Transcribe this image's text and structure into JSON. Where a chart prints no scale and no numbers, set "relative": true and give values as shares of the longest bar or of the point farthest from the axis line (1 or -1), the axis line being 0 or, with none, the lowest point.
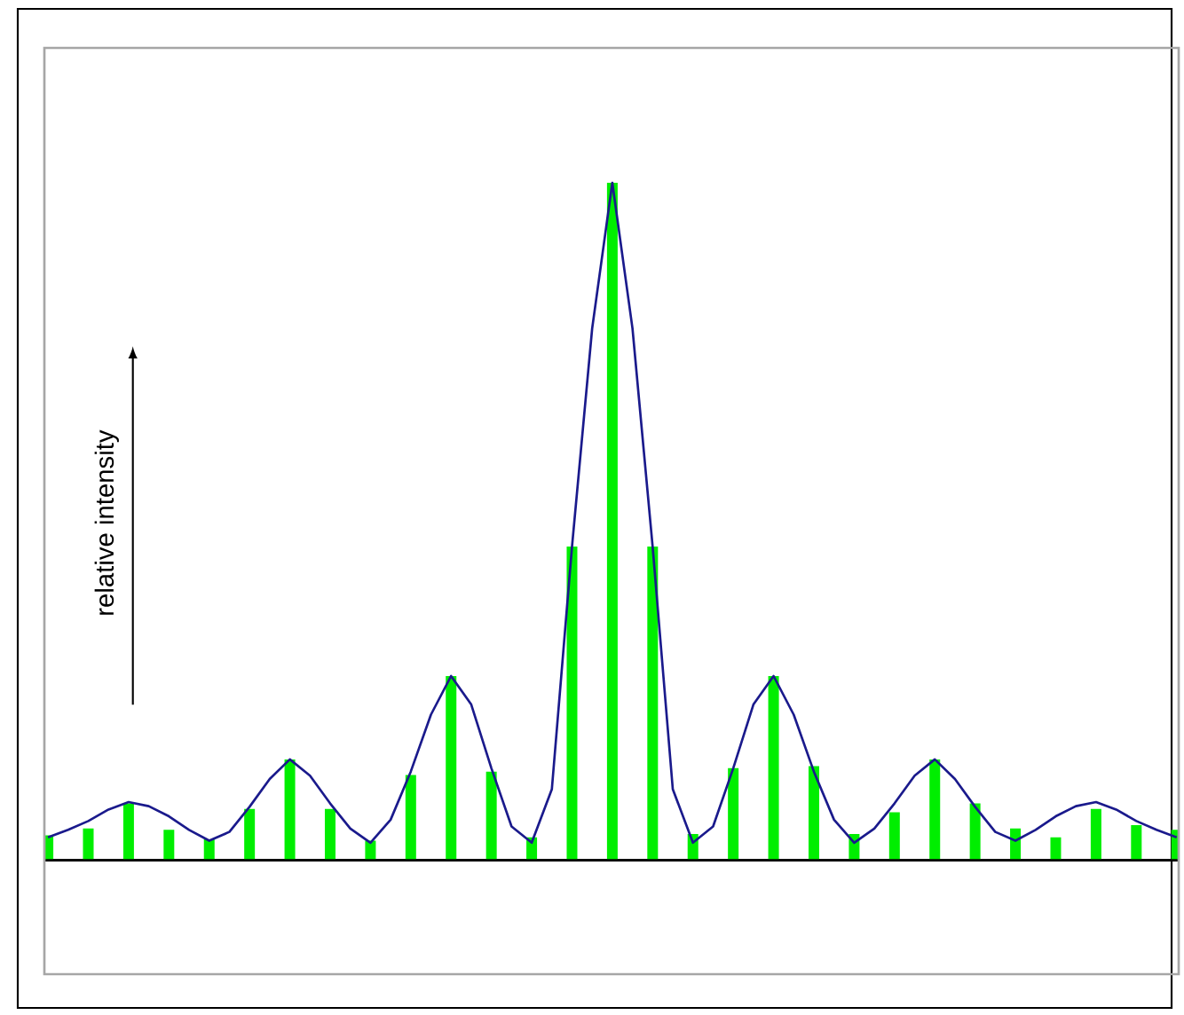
{
  "chart_data": [
    {
      "type": "bar",
      "relative": true,
      "ylabel": "relative intensity",
      "categories": [
        null,
        null,
        null,
        null,
        null,
        null,
        null,
        null,
        null,
        null,
        null,
        null,
        null,
        null,
        null,
        null,
        null,
        null,
        null,
        null,
        null,
        null,
        null,
        null,
        null,
        null,
        null,
        null,
        null
      ],
      "series": [
        {
          "color": "#00ee00",
          "values": [
            0.037,
            0.047,
            0.084,
            0.045,
            0.031,
            0.076,
            0.149,
            0.076,
            0.029,
            0.126,
            0.272,
            0.131,
            0.034,
            0.463,
            1,
            0.463,
            0.039,
            0.136,
            0.272,
            0.139,
            0.039,
            0.071,
            0.149,
            0.084,
            0.047,
            0.034,
            0.076,
            0.052,
            0.045
          ]
        }
      ]
    },
    {
      "type": "line",
      "relative": true,
      "categories": [
        null,
        null,
        null,
        null,
        null,
        null,
        null,
        null,
        null,
        null,
        null,
        null,
        null,
        null,
        null,
        null,
        null,
        null,
        null,
        null,
        null,
        null,
        null,
        null,
        null,
        null,
        null,
        null,
        null,
        null,
        null,
        null,
        null,
        null,
        null,
        null,
        null,
        null,
        null,
        null,
        null,
        null,
        null,
        null,
        null,
        null,
        null,
        null,
        null,
        null,
        null,
        null,
        null,
        null,
        null,
        null,
        null
      ],
      "series": [
        {
          "color": "#1a1a8c",
          "values": [
            0.034,
            0.045,
            0.058,
            0.075,
            0.086,
            0.08,
            0.065,
            0.045,
            0.029,
            0.042,
            0.079,
            0.12,
            0.149,
            0.125,
            0.084,
            0.047,
            0.026,
            0.06,
            0.131,
            0.215,
            0.272,
            0.23,
            0.136,
            0.05,
            0.026,
            0.105,
            0.463,
            0.785,
            1,
            0.785,
            0.463,
            0.105,
            0.026,
            0.05,
            0.136,
            0.23,
            0.272,
            0.215,
            0.131,
            0.06,
            0.026,
            0.047,
            0.084,
            0.125,
            0.149,
            0.12,
            0.079,
            0.042,
            0.029,
            0.045,
            0.065,
            0.08,
            0.086,
            0.075,
            0.058,
            0.045,
            0.034
          ]
        }
      ]
    }
  ]
}
